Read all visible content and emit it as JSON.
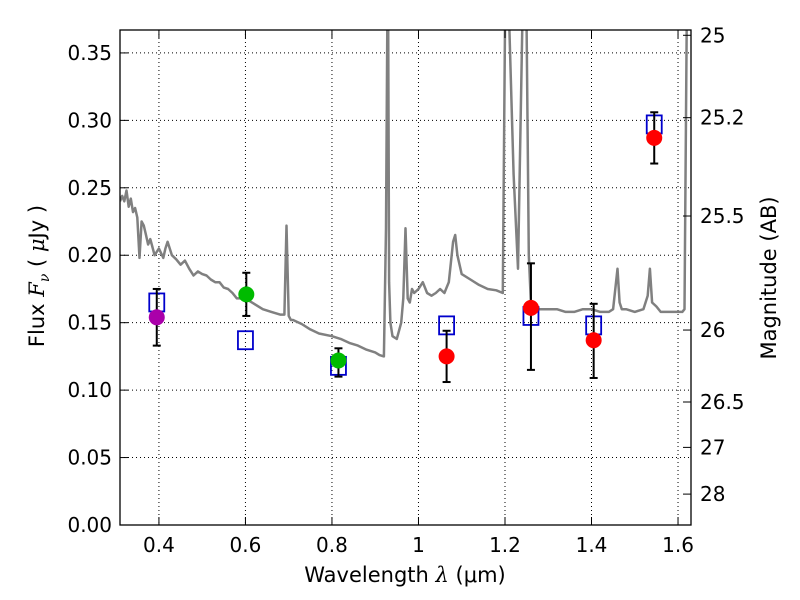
{
  "chart_data": {
    "type": "scatter",
    "xlabel": "Wavelength  λ (μm)",
    "xlabel_parts": {
      "prefix": "Wavelength ",
      "symbol": "λ",
      "unit": "(μm)"
    },
    "ylabel": "Flux  Fν  ( μJy )",
    "ylabel_parts": {
      "prefix": "Flux ",
      "symbol": "F",
      "subscript": "ν",
      "unit_open": " ( ",
      "unit_mu": "μ",
      "unit": "Jy )"
    },
    "y2label": "Magnitude (AB)",
    "xlim": [
      0.31,
      1.63
    ],
    "ylim": [
      0.0,
      0.367
    ],
    "grid": true,
    "xticks": [
      0.4,
      0.6,
      0.8,
      1.0,
      1.2,
      1.4,
      1.6
    ],
    "xtick_labels": [
      "0.4",
      "0.6",
      "0.8",
      "1",
      "1.2",
      "1.4",
      "1.6"
    ],
    "yticks": [
      0.0,
      0.05,
      0.1,
      0.15,
      0.2,
      0.25,
      0.3,
      0.35
    ],
    "ytick_labels": [
      "0.00",
      "0.05",
      "0.10",
      "0.15",
      "0.20",
      "0.25",
      "0.30",
      "0.35"
    ],
    "y2ticks": [
      25,
      25.2,
      25.5,
      26,
      26.5,
      27,
      28
    ],
    "y2tick_labels": [
      "25",
      "25.2",
      "25.5",
      "26",
      "26.5",
      "27",
      "28"
    ],
    "colors": {
      "model": "#808080",
      "model_boxes": "#0000cc",
      "violet": "#aa00aa",
      "green": "#00bb00",
      "red": "#ff0000",
      "errorbar": "#000000",
      "grid": "#000000"
    },
    "observed": [
      {
        "x": 0.395,
        "y": 0.154,
        "yerr_low": 0.021,
        "yerr_high": 0.021,
        "color": "violet"
      },
      {
        "x": 0.602,
        "y": 0.171,
        "yerr_low": 0.016,
        "yerr_high": 0.016,
        "color": "green"
      },
      {
        "x": 0.815,
        "y": 0.122,
        "yerr_low": 0.012,
        "yerr_high": 0.009,
        "color": "green"
      },
      {
        "x": 1.065,
        "y": 0.125,
        "yerr_low": 0.019,
        "yerr_high": 0.019,
        "color": "red"
      },
      {
        "x": 1.26,
        "y": 0.161,
        "yerr_low": 0.046,
        "yerr_high": 0.033,
        "color": "red"
      },
      {
        "x": 1.405,
        "y": 0.137,
        "yerr_low": 0.028,
        "yerr_high": 0.027,
        "color": "red"
      },
      {
        "x": 1.545,
        "y": 0.287,
        "yerr_low": 0.019,
        "yerr_high": 0.019,
        "color": "red"
      }
    ],
    "model_photometry": [
      {
        "x": 0.395,
        "y": 0.165
      },
      {
        "x": 0.6,
        "y": 0.137
      },
      {
        "x": 0.815,
        "y": 0.118
      },
      {
        "x": 1.065,
        "y": 0.148
      },
      {
        "x": 1.26,
        "y": 0.155
      },
      {
        "x": 1.405,
        "y": 0.148
      },
      {
        "x": 1.545,
        "y": 0.297
      }
    ],
    "model_spectrum": {
      "x": [
        0.31,
        0.315,
        0.32,
        0.325,
        0.33,
        0.335,
        0.34,
        0.345,
        0.35,
        0.355,
        0.36,
        0.365,
        0.37,
        0.375,
        0.38,
        0.39,
        0.4,
        0.41,
        0.415,
        0.42,
        0.43,
        0.44,
        0.45,
        0.46,
        0.47,
        0.48,
        0.49,
        0.5,
        0.51,
        0.52,
        0.53,
        0.54,
        0.55,
        0.56,
        0.57,
        0.58,
        0.6,
        0.62,
        0.64,
        0.66,
        0.68,
        0.69,
        0.695,
        0.7,
        0.705,
        0.71,
        0.73,
        0.75,
        0.77,
        0.8,
        0.82,
        0.84,
        0.86,
        0.88,
        0.9,
        0.91,
        0.92,
        0.925,
        0.928,
        0.93,
        0.932,
        0.935,
        0.94,
        0.95,
        0.96,
        0.965,
        0.97,
        0.975,
        0.98,
        0.985,
        0.99,
        1.0,
        1.01,
        1.02,
        1.03,
        1.04,
        1.05,
        1.06,
        1.07,
        1.08,
        1.085,
        1.09,
        1.1,
        1.12,
        1.14,
        1.16,
        1.18,
        1.195,
        1.2,
        1.205,
        1.21,
        1.22,
        1.23,
        1.24,
        1.245,
        1.25,
        1.255,
        1.26,
        1.27,
        1.28,
        1.3,
        1.32,
        1.34,
        1.36,
        1.38,
        1.4,
        1.42,
        1.44,
        1.45,
        1.46,
        1.465,
        1.47,
        1.48,
        1.5,
        1.52,
        1.53,
        1.535,
        1.54,
        1.55,
        1.56,
        1.58,
        1.6,
        1.61,
        1.615,
        1.62,
        1.625,
        1.63
      ],
      "y": [
        0.24,
        0.244,
        0.24,
        0.248,
        0.236,
        0.242,
        0.232,
        0.235,
        0.228,
        0.198,
        0.225,
        0.222,
        0.215,
        0.208,
        0.212,
        0.2,
        0.205,
        0.198,
        0.205,
        0.21,
        0.2,
        0.197,
        0.193,
        0.196,
        0.19,
        0.185,
        0.188,
        0.186,
        0.185,
        0.182,
        0.18,
        0.18,
        0.176,
        0.175,
        0.172,
        0.168,
        0.168,
        0.164,
        0.16,
        0.158,
        0.156,
        0.156,
        0.222,
        0.155,
        0.152,
        0.152,
        0.149,
        0.145,
        0.142,
        0.14,
        0.138,
        0.135,
        0.133,
        0.13,
        0.128,
        0.126,
        0.125,
        0.22,
        0.37,
        0.37,
        0.18,
        0.15,
        0.14,
        0.138,
        0.15,
        0.168,
        0.22,
        0.168,
        0.165,
        0.175,
        0.172,
        0.175,
        0.18,
        0.172,
        0.17,
        0.172,
        0.175,
        0.172,
        0.18,
        0.21,
        0.215,
        0.2,
        0.186,
        0.182,
        0.178,
        0.175,
        0.174,
        0.172,
        0.37,
        0.37,
        0.37,
        0.26,
        0.19,
        0.37,
        0.37,
        0.37,
        0.2,
        0.165,
        0.162,
        0.16,
        0.16,
        0.16,
        0.158,
        0.158,
        0.16,
        0.16,
        0.158,
        0.158,
        0.16,
        0.19,
        0.165,
        0.16,
        0.16,
        0.158,
        0.16,
        0.17,
        0.19,
        0.165,
        0.162,
        0.158,
        0.158,
        0.158,
        0.158,
        0.16,
        0.37,
        0.37,
        0.37
      ]
    }
  }
}
